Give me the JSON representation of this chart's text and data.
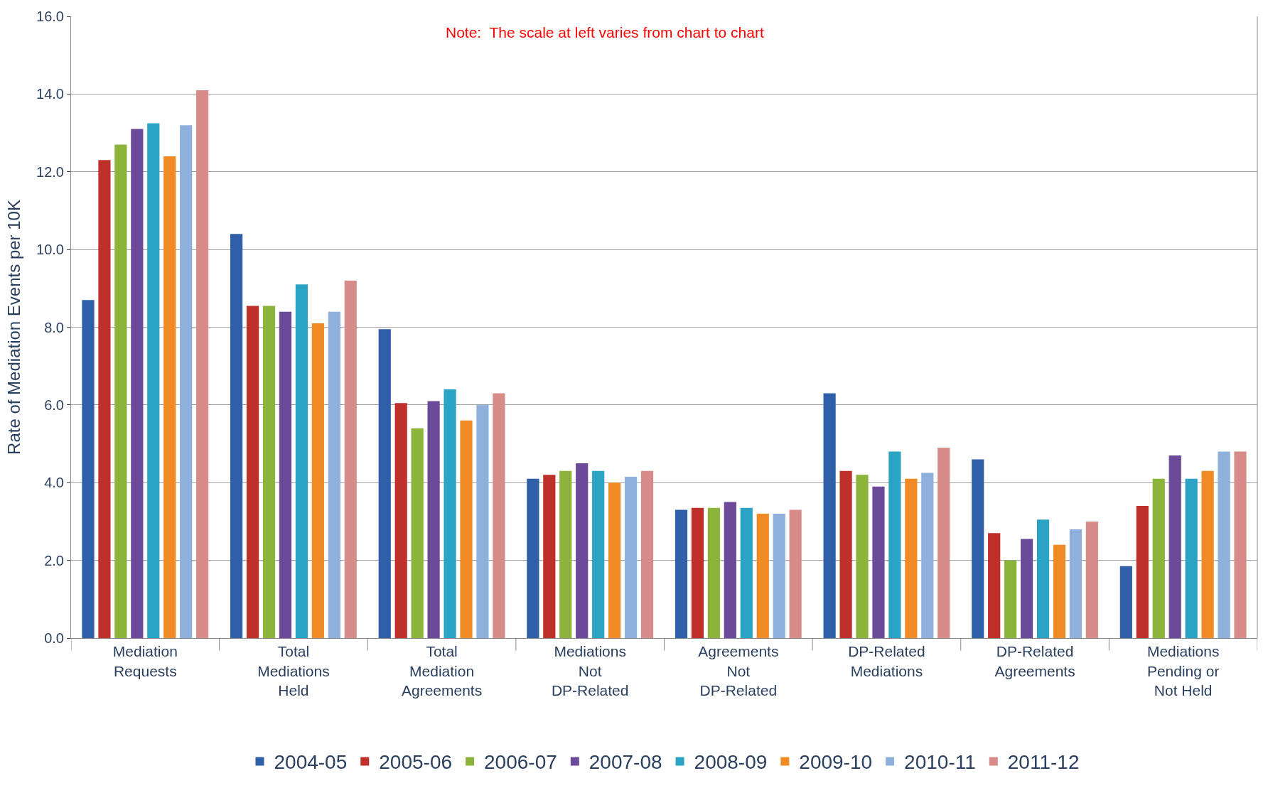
{
  "chart_data": {
    "type": "bar",
    "ylabel": "Rate of Mediation Events per 10K",
    "annotations": [
      "Note:  The scale at left varies from chart to chart"
    ],
    "categories": [
      "Mediation\nRequests",
      "Total\nMediations\nHeld",
      "Total\nMediation\nAgreements",
      "Mediations\nNot\nDP-Related",
      "Agreements\nNot\nDP-Related",
      "DP-Related\nMediations",
      "DP-Related\nAgreements",
      "Mediations\nPending or\nNot Held"
    ],
    "series": [
      {
        "name": "2004-05",
        "color": "#2e5fa8",
        "values": [
          8.7,
          10.4,
          7.95,
          4.1,
          3.3,
          6.3,
          4.6,
          1.85
        ]
      },
      {
        "name": "2005-06",
        "color": "#c0302b",
        "values": [
          12.3,
          8.55,
          6.05,
          4.2,
          3.35,
          4.3,
          2.7,
          3.4
        ]
      },
      {
        "name": "2006-07",
        "color": "#8db43a",
        "values": [
          12.7,
          8.55,
          5.4,
          4.3,
          3.35,
          4.2,
          2.0,
          4.1
        ]
      },
      {
        "name": "2007-08",
        "color": "#6b4a9a",
        "values": [
          13.1,
          8.4,
          6.1,
          4.5,
          3.5,
          3.9,
          2.55,
          4.7
        ]
      },
      {
        "name": "2008-09",
        "color": "#2ba3c4",
        "values": [
          13.25,
          9.1,
          6.4,
          4.3,
          3.35,
          4.8,
          3.05,
          4.1
        ]
      },
      {
        "name": "2009-10",
        "color": "#f08a24",
        "values": [
          12.4,
          8.1,
          5.6,
          4.0,
          3.2,
          4.1,
          2.4,
          4.3
        ]
      },
      {
        "name": "2010-11",
        "color": "#8fb0dd",
        "values": [
          13.2,
          8.4,
          6.0,
          4.15,
          3.2,
          4.25,
          2.8,
          4.8
        ]
      },
      {
        "name": "2011-12",
        "color": "#d88c8a",
        "values": [
          14.1,
          9.2,
          6.3,
          4.3,
          3.3,
          4.9,
          3.0,
          4.8
        ]
      }
    ],
    "ylim": [
      0,
      16
    ],
    "yticks": [
      {
        "value": 0,
        "label": "0.0"
      },
      {
        "value": 2,
        "label": "2.0"
      },
      {
        "value": 4,
        "label": "4.0"
      },
      {
        "value": 6,
        "label": "6.0"
      },
      {
        "value": 8,
        "label": "8.0"
      },
      {
        "value": 10,
        "label": "10.0"
      },
      {
        "value": 12,
        "label": "12.0"
      },
      {
        "value": 14,
        "label": "14.0"
      },
      {
        "value": 16,
        "label": "16.0"
      }
    ],
    "grid": "y",
    "legend": "bottom"
  }
}
